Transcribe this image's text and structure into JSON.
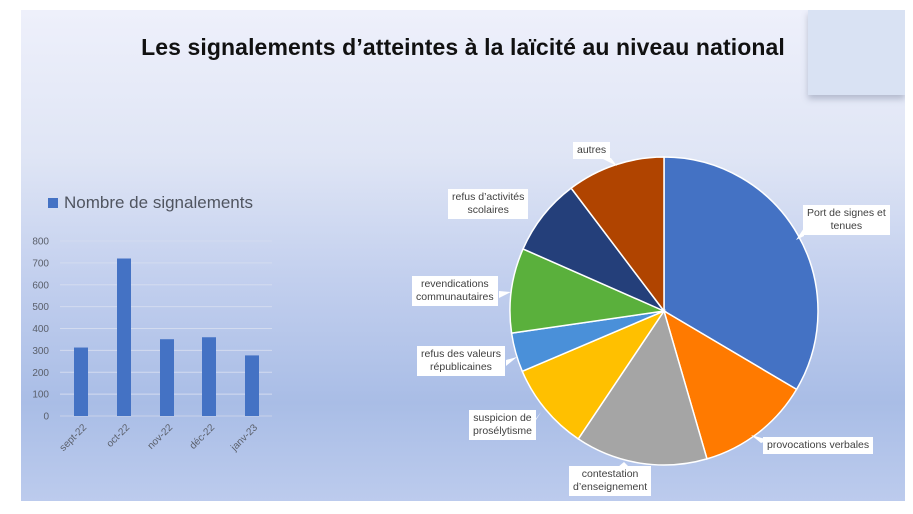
{
  "slide": {
    "title": "Les signalements d’atteintes à la laïcité au niveau national"
  },
  "chart_data": [
    {
      "type": "bar",
      "title": "",
      "legend": [
        "Nombre de signalements"
      ],
      "legend_position": "top-left",
      "categories": [
        "sept-22",
        "oct-22",
        "nov-22",
        "déc-22",
        "janv-23"
      ],
      "series": [
        {
          "name": "Nombre de signalements",
          "values": [
            313,
            720,
            351,
            360,
            277
          ],
          "color": "#4472c4"
        }
      ],
      "xlabel": "",
      "ylabel": "",
      "ylim": [
        0,
        800
      ],
      "yticks": [
        0,
        100,
        200,
        300,
        400,
        500,
        600,
        700,
        800
      ],
      "grid": true
    },
    {
      "type": "pie",
      "title": "",
      "start_angle": "12 o'clock, clockwise",
      "slices": [
        {
          "label": "Port de signes et tenues",
          "value": 33.5,
          "color": "#4472c4"
        },
        {
          "label": "provocations verbales",
          "value": 12.0,
          "color": "#ff7a00"
        },
        {
          "label": "contestation d’enseignement",
          "value": 13.9,
          "color": "#a5a5a5"
        },
        {
          "label": "suspicion de prosélytisme",
          "value": 9.2,
          "color": "#ffc000"
        },
        {
          "label": "refus des valeurs républicaines",
          "value": 4.1,
          "color": "#4a90d9"
        },
        {
          "label": "revendications communautaires",
          "value": 8.9,
          "color": "#5ab03c"
        },
        {
          "label": "refus d’activités scolaires",
          "value": 8.1,
          "color": "#243f7a"
        },
        {
          "label": "autres",
          "value": 10.3,
          "color": "#b04400"
        }
      ],
      "value_unit": "% (estimated from slice angles)"
    }
  ],
  "bar_chart": {
    "legend_label": "Nombre de signalements",
    "y_ticks": [
      "0",
      "100",
      "200",
      "300",
      "400",
      "500",
      "600",
      "700",
      "800"
    ],
    "x_labels": [
      "sept-22",
      "oct-22",
      "nov-22",
      "déc-22",
      "janv-23"
    ]
  },
  "pie_chart": {
    "labels": {
      "port": [
        "Port de signes et",
        "tenues"
      ],
      "provocations": [
        "provocations verbales"
      ],
      "contestation": [
        "contestation",
        "d’enseignement"
      ],
      "suspicion": [
        "suspicion de",
        "prosélytisme"
      ],
      "valeurs": [
        "refus des valeurs",
        "républicaines"
      ],
      "revendications": [
        "revendications",
        "communautaires"
      ],
      "activites": [
        "refus d’activités",
        "scolaires"
      ],
      "autres": [
        "autres"
      ]
    }
  }
}
